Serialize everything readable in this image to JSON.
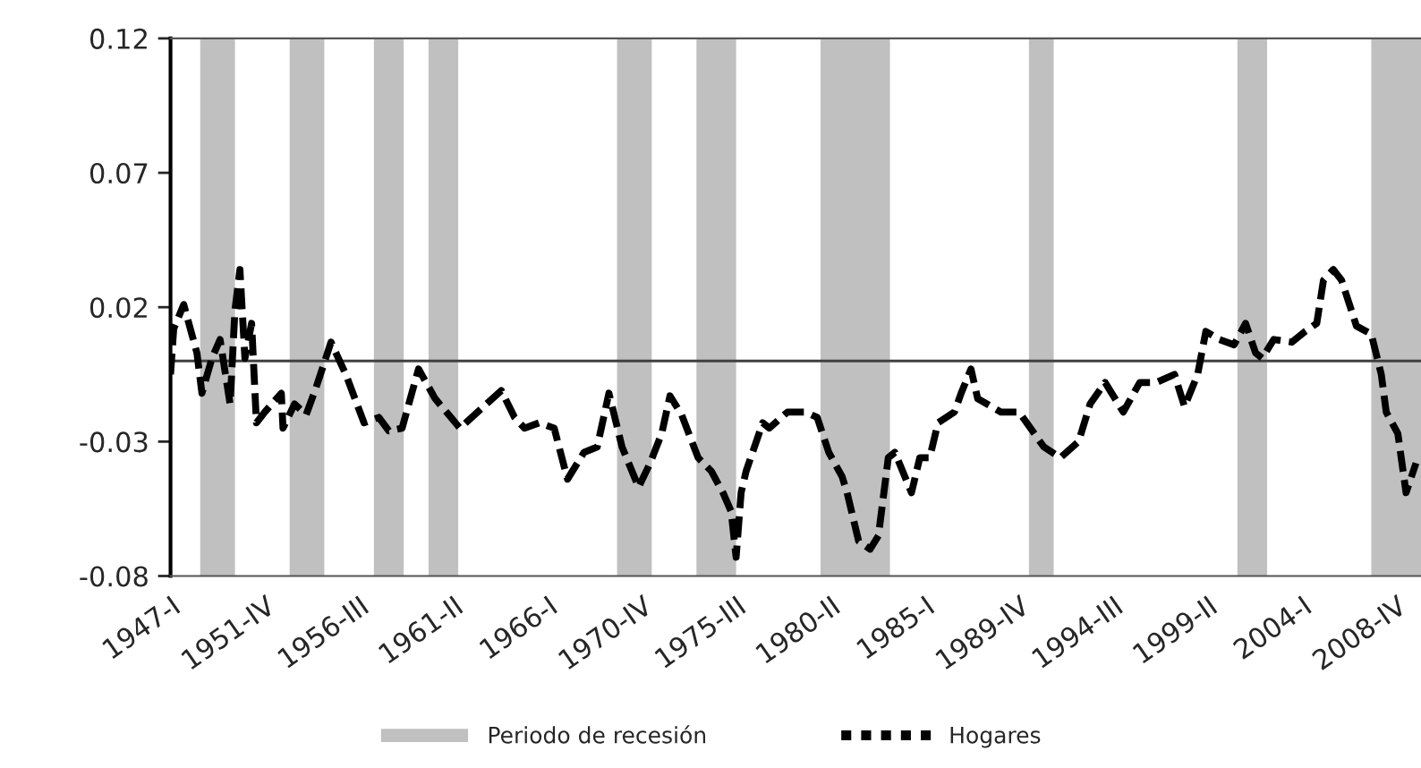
{
  "chart_data": {
    "type": "line",
    "x": [
      "1947-01",
      "1947-03",
      "1947-09",
      "1948-05",
      "1948-08",
      "1949-02",
      "1949-07",
      "1950-01",
      "1950-04",
      "1950-07",
      "1950-10",
      "1951-02",
      "1951-05",
      "1951-10",
      "1952-08",
      "1952-09",
      "1953-04",
      "1953-11",
      "1954-05",
      "1955-02",
      "1955-11",
      "1956-10",
      "1957-07",
      "1958-01",
      "1958-09",
      "1959-07",
      "1960-05",
      "1961-08",
      "1963-09",
      "1964-05",
      "1964-11",
      "1965-08",
      "1966-05",
      "1967-01",
      "1967-11",
      "1968-07",
      "1969-02",
      "1969-10",
      "1970-08",
      "1971-03",
      "1971-10",
      "1972-03",
      "1972-10",
      "1973-08",
      "1974-04",
      "1974-11",
      "1975-04",
      "1975-07",
      "1975-10",
      "1976-01",
      "1976-11",
      "1977-03",
      "1978-02",
      "1979-01",
      "1979-08",
      "1980-03",
      "1980-11",
      "1981-02",
      "1981-09",
      "1982-04",
      "1982-09",
      "1983-03",
      "1983-07",
      "1984-05",
      "1984-10",
      "1985-04",
      "1985-09",
      "1986-07",
      "1986-11",
      "1987-05",
      "1987-09",
      "1988-11",
      "1989-10",
      "1991-01",
      "1991-11",
      "1992-10",
      "1993-05",
      "1994-02",
      "1995-01",
      "1995-11",
      "1996-09",
      "1997-08",
      "1998-02",
      "1998-10",
      "1999-03",
      "1999-11",
      "2000-08",
      "2001-03",
      "2001-09",
      "2002-01",
      "2002-08",
      "2003-07",
      "2004-03",
      "2004-10",
      "2005-02",
      "2005-08",
      "2006-01",
      "2006-10",
      "2007-07",
      "2008-01",
      "2008-04",
      "2008-11",
      "2009-04",
      "2009-10"
    ],
    "series": [
      {
        "name": "Hogares",
        "color": "#000000",
        "line_style": "dashed",
        "values": [
          -0.005,
          0.012,
          0.021,
          0.003,
          -0.012,
          0.001,
          0.008,
          -0.016,
          0.019,
          0.034,
          0.001,
          0.014,
          -0.023,
          -0.019,
          -0.012,
          -0.025,
          -0.016,
          -0.02,
          -0.01,
          0.007,
          -0.005,
          -0.023,
          -0.021,
          -0.026,
          -0.025,
          -0.003,
          -0.014,
          -0.025,
          -0.011,
          -0.021,
          -0.025,
          -0.023,
          -0.025,
          -0.044,
          -0.034,
          -0.032,
          -0.012,
          -0.032,
          -0.047,
          -0.038,
          -0.027,
          -0.013,
          -0.02,
          -0.036,
          -0.041,
          -0.049,
          -0.056,
          -0.073,
          -0.049,
          -0.041,
          -0.023,
          -0.025,
          -0.019,
          -0.019,
          -0.021,
          -0.034,
          -0.043,
          -0.049,
          -0.067,
          -0.07,
          -0.065,
          -0.036,
          -0.034,
          -0.049,
          -0.036,
          -0.036,
          -0.023,
          -0.019,
          -0.012,
          -0.003,
          -0.014,
          -0.019,
          -0.019,
          -0.032,
          -0.036,
          -0.03,
          -0.016,
          -0.008,
          -0.019,
          -0.008,
          -0.008,
          -0.005,
          -0.017,
          -0.005,
          0.011,
          0.008,
          0.006,
          0.014,
          0.003,
          0.001,
          0.008,
          0.007,
          0.011,
          0.014,
          0.03,
          0.034,
          0.03,
          0.013,
          0.01,
          -0.005,
          -0.019,
          -0.027,
          -0.049,
          -0.038
        ]
      }
    ],
    "xlim": [
      "1947-01",
      "2010-01"
    ],
    "xticks": [
      {
        "value": "1947-01",
        "label": "1947-I"
      },
      {
        "value": "1951-10",
        "label": "1951-IV"
      },
      {
        "value": "1956-07",
        "label": "1956-III"
      },
      {
        "value": "1961-04",
        "label": "1961-II"
      },
      {
        "value": "1966-01",
        "label": "1966-I"
      },
      {
        "value": "1970-10",
        "label": "1970-IV"
      },
      {
        "value": "1975-07",
        "label": "1975-III"
      },
      {
        "value": "1980-04",
        "label": "1980-II"
      },
      {
        "value": "1985-01",
        "label": "1985-I"
      },
      {
        "value": "1989-10",
        "label": "1989-IV"
      },
      {
        "value": "1994-07",
        "label": "1994-III"
      },
      {
        "value": "1999-04",
        "label": "1999-II"
      },
      {
        "value": "2004-01",
        "label": "2004-I"
      },
      {
        "value": "2008-10",
        "label": "2008-IV"
      }
    ],
    "ylim": [
      -0.08,
      0.12
    ],
    "yticks": [
      -0.08,
      -0.03,
      0.02,
      0.07,
      0.12
    ],
    "ref_lines": [
      {
        "axis": "y",
        "value": 0,
        "color": "#404040"
      }
    ],
    "bands": [
      {
        "axis": "x",
        "from": "1948-07",
        "to": "1950-04",
        "color": "#c0c0c0",
        "label": "Periodo de recesión"
      },
      {
        "axis": "x",
        "from": "1953-01",
        "to": "1954-10",
        "color": "#c0c0c0"
      },
      {
        "axis": "x",
        "from": "1957-04",
        "to": "1958-10",
        "color": "#c0c0c0"
      },
      {
        "axis": "x",
        "from": "1960-01",
        "to": "1961-07",
        "color": "#c0c0c0"
      },
      {
        "axis": "x",
        "from": "1969-07",
        "to": "1971-04",
        "color": "#c0c0c0"
      },
      {
        "axis": "x",
        "from": "1973-07",
        "to": "1975-07",
        "color": "#c0c0c0"
      },
      {
        "axis": "x",
        "from": "1979-10",
        "to": "1983-04",
        "color": "#c0c0c0"
      },
      {
        "axis": "x",
        "from": "1990-04",
        "to": "1991-07",
        "color": "#c0c0c0"
      },
      {
        "axis": "x",
        "from": "2000-10",
        "to": "2002-04",
        "color": "#c0c0c0"
      },
      {
        "axis": "x",
        "from": "2007-07",
        "to": "2010-01",
        "color": "#c0c0c0"
      }
    ],
    "grid": false,
    "legend": "bottom",
    "marker": "none"
  }
}
